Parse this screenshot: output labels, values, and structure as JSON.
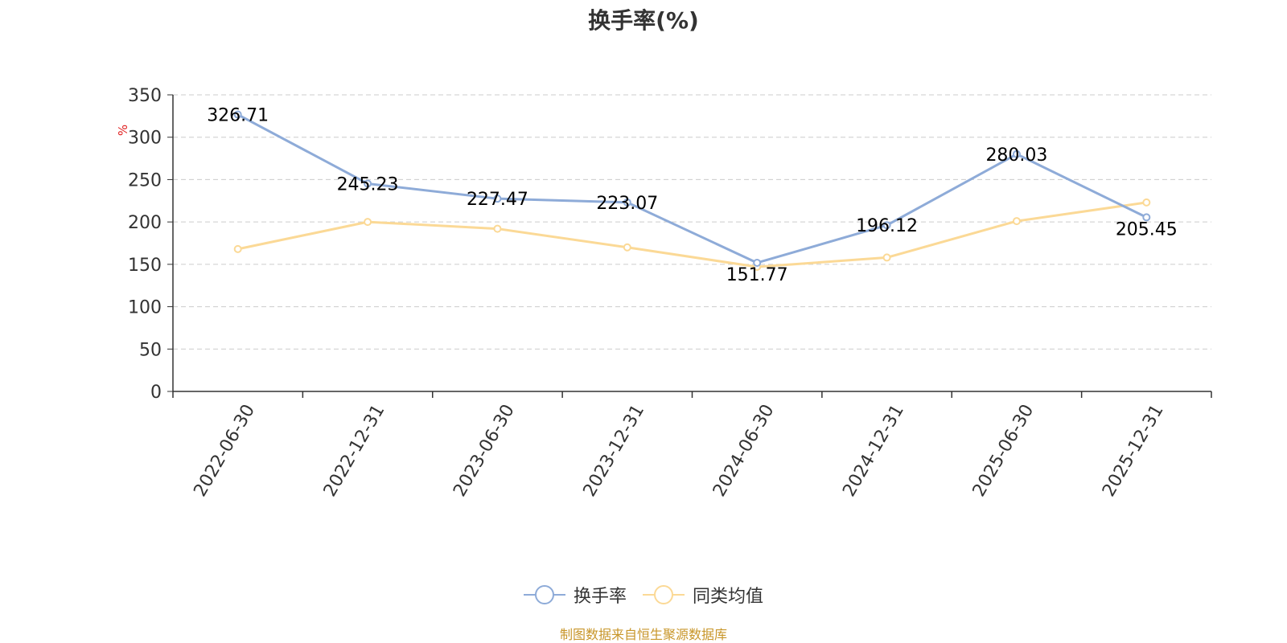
{
  "colors": {
    "series1": "#8eabd8",
    "series2": "#fbd996",
    "grid": "#cccccc",
    "axis": "#333333",
    "unit": "#e02020",
    "source": "#c8962a"
  },
  "chart_data": {
    "type": "line",
    "title": "换手率(%)",
    "ylabel": "%",
    "x": [
      "2022-06-30",
      "2022-12-31",
      "2023-06-30",
      "2023-12-31",
      "2024-06-30",
      "2024-12-31",
      "2025-06-30",
      "2025-12-31"
    ],
    "yticks": [
      0,
      50,
      100,
      150,
      200,
      250,
      300,
      350
    ],
    "ylim": [
      0,
      350
    ],
    "grid": true,
    "legend_position": "bottom",
    "series": [
      {
        "name": "换手率",
        "values": [
          326.71,
          245.23,
          227.47,
          223.07,
          151.77,
          196.12,
          280.03,
          205.45
        ],
        "labels": [
          "326.71",
          "245.23",
          "227.47",
          "223.07",
          "151.77",
          "196.12",
          "280.03",
          "205.45"
        ]
      },
      {
        "name": "同类均值",
        "values": [
          168,
          200,
          192,
          170,
          147,
          158,
          201,
          223
        ]
      }
    ]
  },
  "source": "制图数据来自恒生聚源数据库"
}
